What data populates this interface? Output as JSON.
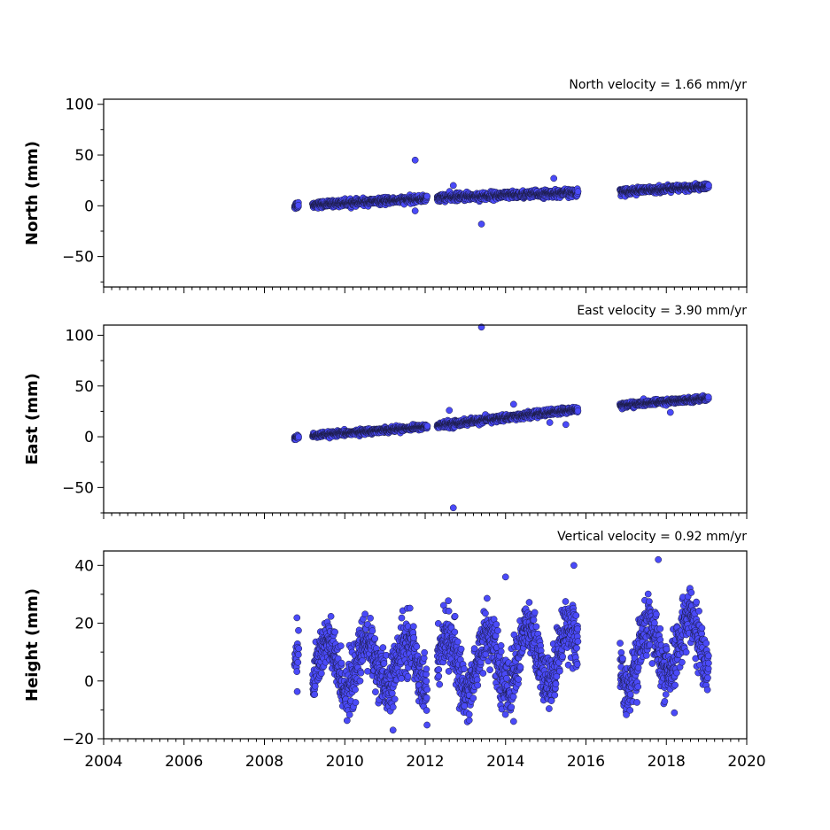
{
  "chart_data": [
    {
      "type": "scatter",
      "id": "north",
      "ylabel": "North (mm)",
      "annotation": "North velocity = 1.66 mm/yr",
      "velocity_mm_per_yr": 1.66,
      "xlim": [
        2004,
        2020
      ],
      "ylim": [
        -80,
        105
      ],
      "yticks": [
        -50,
        0,
        50,
        100
      ],
      "ytick_labels": [
        "−50",
        "0",
        "50",
        "100"
      ],
      "xticks": [
        2004,
        2006,
        2008,
        2010,
        2012,
        2014,
        2016,
        2018,
        2020
      ],
      "xtick_labels": [],
      "point_color": "#4a4af8",
      "segments": [
        {
          "x_start": 2008.75,
          "x_end": 2008.85,
          "y_start": 0,
          "y_end": 1,
          "spread": 3
        },
        {
          "x_start": 2009.2,
          "x_end": 2012.05,
          "y_start": 1,
          "y_end": 7,
          "spread": 2.5
        },
        {
          "x_start": 2012.3,
          "x_end": 2015.8,
          "y_start": 8,
          "y_end": 13,
          "spread": 3
        },
        {
          "x_start": 2016.85,
          "x_end": 2019.05,
          "y_start": 14,
          "y_end": 19,
          "spread": 2.5
        }
      ],
      "outliers": [
        [
          2011.75,
          45
        ],
        [
          2011.75,
          -5
        ],
        [
          2013.4,
          -18
        ],
        [
          2012.7,
          20
        ],
        [
          2015.2,
          27
        ]
      ]
    },
    {
      "type": "scatter",
      "id": "east",
      "ylabel": "East (mm)",
      "annotation": "East velocity = 3.90 mm/yr",
      "velocity_mm_per_yr": 3.9,
      "xlim": [
        2004,
        2020
      ],
      "ylim": [
        -75,
        110
      ],
      "yticks": [
        -50,
        0,
        50,
        100
      ],
      "ytick_labels": [
        "−50",
        "0",
        "50",
        "100"
      ],
      "xticks": [
        2004,
        2006,
        2008,
        2010,
        2012,
        2014,
        2016,
        2018,
        2020
      ],
      "xtick_labels": [],
      "point_color": "#4a4af8",
      "segments": [
        {
          "x_start": 2008.75,
          "x_end": 2008.85,
          "y_start": -1,
          "y_end": 0,
          "spread": 2
        },
        {
          "x_start": 2009.2,
          "x_end": 2012.05,
          "y_start": 1,
          "y_end": 10,
          "spread": 2
        },
        {
          "x_start": 2012.3,
          "x_end": 2015.8,
          "y_start": 11,
          "y_end": 27,
          "spread": 2.5
        },
        {
          "x_start": 2016.85,
          "x_end": 2019.05,
          "y_start": 31,
          "y_end": 38,
          "spread": 2
        }
      ],
      "outliers": [
        [
          2013.4,
          108
        ],
        [
          2012.7,
          -70
        ],
        [
          2012.6,
          26
        ],
        [
          2015.5,
          12
        ],
        [
          2015.1,
          14
        ],
        [
          2018.1,
          24
        ],
        [
          2014.2,
          32
        ]
      ]
    },
    {
      "type": "scatter",
      "id": "height",
      "ylabel": "Height (mm)",
      "annotation": "Vertical velocity = 0.92 mm/yr",
      "velocity_mm_per_yr": 0.92,
      "xlim": [
        2004,
        2020
      ],
      "ylim": [
        -20,
        45
      ],
      "yticks": [
        -20,
        0,
        20,
        40
      ],
      "ytick_labels": [
        "−20",
        "0",
        "20",
        "40"
      ],
      "xticks": [
        2004,
        2006,
        2008,
        2010,
        2012,
        2014,
        2016,
        2018,
        2020
      ],
      "xtick_labels": [
        "2004",
        "2006",
        "2008",
        "2010",
        "2012",
        "2014",
        "2016",
        "2018",
        "2020"
      ],
      "point_color": "#4a4af8",
      "segments": [
        {
          "x_start": 2008.75,
          "x_end": 2008.85,
          "y_start": 8,
          "y_end": 8,
          "spread": 7
        },
        {
          "x_start": 2009.2,
          "x_end": 2012.05,
          "y_start": 5,
          "y_end": 6,
          "spread": 8,
          "seasonal_amplitude": 8
        },
        {
          "x_start": 2012.3,
          "x_end": 2015.8,
          "y_start": 5,
          "y_end": 10,
          "spread": 8,
          "seasonal_amplitude": 10
        },
        {
          "x_start": 2016.85,
          "x_end": 2019.05,
          "y_start": 7,
          "y_end": 15,
          "spread": 8,
          "seasonal_amplitude": 10
        }
      ],
      "outliers": [
        [
          2017.8,
          42
        ],
        [
          2015.7,
          40
        ],
        [
          2014.0,
          36
        ],
        [
          2011.2,
          -17
        ],
        [
          2014.2,
          -14
        ],
        [
          2018.2,
          -11
        ]
      ]
    }
  ]
}
